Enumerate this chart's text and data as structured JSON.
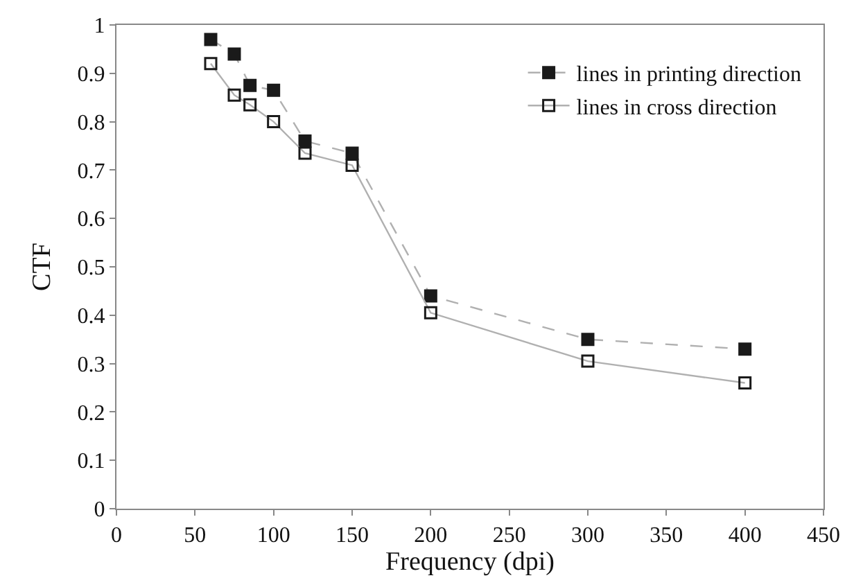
{
  "chart_data": {
    "type": "line",
    "xlabel": "Frequency (dpi)",
    "ylabel": "CTF",
    "xlim": [
      0,
      450
    ],
    "xticks": [
      0,
      50,
      100,
      150,
      200,
      250,
      300,
      350,
      400,
      450
    ],
    "ylim": [
      0,
      1
    ],
    "yticks": [
      0,
      0.1,
      0.2,
      0.3,
      0.4,
      0.5,
      0.6,
      0.7,
      0.8,
      0.9,
      1
    ],
    "grid": false,
    "legend": "top right",
    "series": [
      {
        "name": "lines in printing direction",
        "color": "#1a1a1a",
        "line_style": "dashed",
        "marker": "square",
        "x": [
          60,
          75,
          85,
          100,
          120,
          150,
          200,
          300,
          400
        ],
        "values": [
          0.97,
          0.94,
          0.875,
          0.865,
          0.76,
          0.735,
          0.44,
          0.35,
          0.33
        ]
      },
      {
        "name": "lines in cross direction",
        "color": "#1a1a1a",
        "line_style": "solid",
        "marker": "square-open",
        "x": [
          60,
          75,
          85,
          100,
          120,
          150,
          200,
          300,
          400
        ],
        "values": [
          0.92,
          0.855,
          0.835,
          0.8,
          0.735,
          0.71,
          0.405,
          0.305,
          0.26
        ]
      }
    ]
  }
}
